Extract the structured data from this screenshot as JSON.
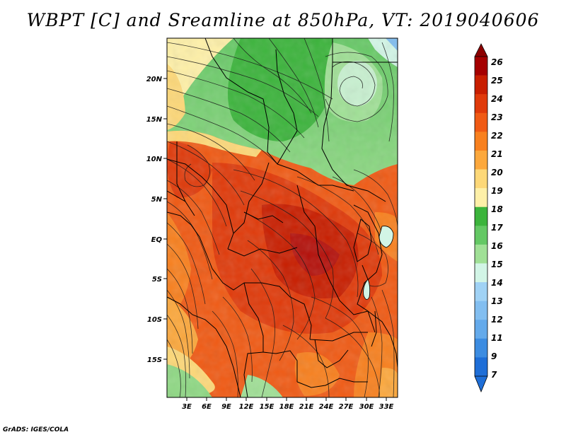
{
  "title": "WBPT [C] and Sreamline at 850hPa, VT: 2019040606",
  "footer": "GrADS: IGES/COLA",
  "map": {
    "lat_labels": [
      "20N",
      "15N",
      "10N",
      "5N",
      "EQ",
      "5S",
      "10S",
      "15S"
    ],
    "lon_labels": [
      "3E",
      "6E",
      "9E",
      "12E",
      "15E",
      "18E",
      "21E",
      "24E",
      "27E",
      "30E",
      "33E"
    ]
  },
  "colorbar": {
    "labels": [
      "26",
      "25",
      "24",
      "23",
      "22",
      "21",
      "20",
      "19",
      "18",
      "17",
      "16",
      "15",
      "14",
      "13",
      "12",
      "11",
      "9",
      "7"
    ],
    "colors": [
      "#a50000",
      "#c81e00",
      "#e03a0a",
      "#f05a14",
      "#f8801e",
      "#fca83c",
      "#fdd878",
      "#fef0a8",
      "#3cb43c",
      "#64c864",
      "#a0e096",
      "#d2f5e6",
      "#a0d2f5",
      "#82bef0",
      "#64aaeb",
      "#3c8ce1",
      "#1e6ed7"
    ]
  }
}
